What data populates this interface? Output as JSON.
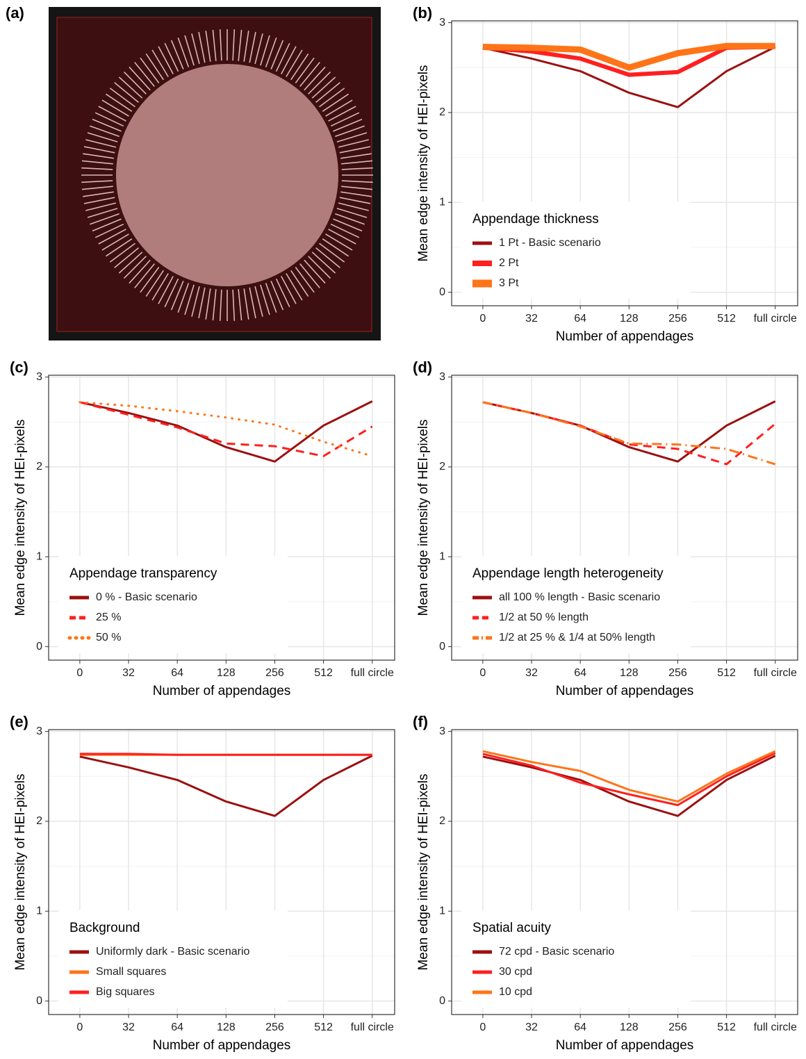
{
  "image_panel": {
    "label": "(a)"
  },
  "chart_data": [
    {
      "type": "line",
      "panel_label": "(b)",
      "xlabel": "Number of appendages",
      "ylabel": "Mean edge intensity of HEI-pixels",
      "categories": [
        "0",
        "32",
        "64",
        "128",
        "256",
        "512",
        "full circle"
      ],
      "ylim": [
        -0.15,
        3.02
      ],
      "yticks": [
        0,
        1,
        2,
        3
      ],
      "grid": true,
      "legend_title": "Appendage thickness",
      "series": [
        {
          "name": "1 Pt - Basic scenario",
          "color": "#9b1010",
          "dash": "solid",
          "line_width": 3,
          "values": [
            2.72,
            2.6,
            2.46,
            2.22,
            2.06,
            2.46,
            2.73
          ]
        },
        {
          "name": "2 Pt",
          "color": "#ff1f1f",
          "dash": "solid",
          "line_width": 6,
          "values": [
            2.72,
            2.68,
            2.6,
            2.42,
            2.45,
            2.72,
            2.73
          ]
        },
        {
          "name": "3 Pt",
          "color": "#ff7418",
          "dash": "solid",
          "line_width": 9,
          "values": [
            2.73,
            2.72,
            2.7,
            2.5,
            2.66,
            2.74,
            2.74
          ]
        }
      ]
    },
    {
      "type": "line",
      "panel_label": "(c)",
      "xlabel": "Number of appendages",
      "ylabel": "Mean edge intensity of HEI-pixels",
      "categories": [
        "0",
        "32",
        "64",
        "128",
        "256",
        "512",
        "full circle"
      ],
      "ylim": [
        -0.15,
        3.02
      ],
      "yticks": [
        0,
        1,
        2,
        3
      ],
      "grid": true,
      "legend_title": "Appendage transparency",
      "series": [
        {
          "name": "0 % - Basic scenario",
          "color": "#9b1010",
          "dash": "solid",
          "line_width": 3,
          "values": [
            2.72,
            2.6,
            2.46,
            2.22,
            2.06,
            2.46,
            2.73
          ]
        },
        {
          "name": "25 %",
          "color": "#ff1f1f",
          "dash": "dashed",
          "line_width": 3,
          "values": [
            2.72,
            2.58,
            2.44,
            2.26,
            2.23,
            2.12,
            2.45
          ]
        },
        {
          "name": "50 %",
          "color": "#ff7418",
          "dash": "dotted",
          "line_width": 3,
          "values": [
            2.72,
            2.68,
            2.62,
            2.55,
            2.47,
            2.28,
            2.12
          ]
        }
      ]
    },
    {
      "type": "line",
      "panel_label": "(d)",
      "xlabel": "Number of appendages",
      "ylabel": "Mean edge intensity of HEI-pixels",
      "categories": [
        "0",
        "32",
        "64",
        "128",
        "256",
        "512",
        "full circle"
      ],
      "ylim": [
        -0.15,
        3.02
      ],
      "yticks": [
        0,
        1,
        2,
        3
      ],
      "grid": true,
      "legend_title": "Appendage length heterogeneity",
      "series": [
        {
          "name": "all 100 % length - Basic scenario",
          "color": "#9b1010",
          "dash": "solid",
          "line_width": 3,
          "values": [
            2.72,
            2.6,
            2.46,
            2.22,
            2.06,
            2.46,
            2.73
          ]
        },
        {
          "name": "1/2 at 50 % length",
          "color": "#ff1f1f",
          "dash": "dashed",
          "line_width": 3,
          "values": [
            2.72,
            2.6,
            2.46,
            2.25,
            2.2,
            2.03,
            2.48
          ]
        },
        {
          "name": "1/2 at 25 % & 1/4 at 50% length",
          "color": "#ff7418",
          "dash": "dashdot",
          "line_width": 3,
          "values": [
            2.72,
            2.6,
            2.45,
            2.26,
            2.25,
            2.2,
            2.03
          ]
        }
      ]
    },
    {
      "type": "line",
      "panel_label": "(e)",
      "xlabel": "Number of appendages",
      "ylabel": "Mean edge intensity of HEI-pixels",
      "categories": [
        "0",
        "32",
        "64",
        "128",
        "256",
        "512",
        "full circle"
      ],
      "ylim": [
        -0.15,
        3.02
      ],
      "yticks": [
        0,
        1,
        2,
        3
      ],
      "grid": true,
      "legend_title": "Background",
      "series": [
        {
          "name": "Uniformly dark - Basic scenario",
          "color": "#9b1010",
          "dash": "solid",
          "line_width": 3,
          "values": [
            2.72,
            2.6,
            2.46,
            2.22,
            2.06,
            2.46,
            2.73
          ]
        },
        {
          "name": "Small squares",
          "color": "#ff7418",
          "dash": "solid",
          "line_width": 3,
          "values": [
            2.74,
            2.74,
            2.74,
            2.74,
            2.74,
            2.74,
            2.74
          ]
        },
        {
          "name": "Big squares",
          "color": "#ff1f1f",
          "dash": "solid",
          "line_width": 3,
          "values": [
            2.75,
            2.75,
            2.74,
            2.74,
            2.74,
            2.74,
            2.74
          ]
        }
      ]
    },
    {
      "type": "line",
      "panel_label": "(f)",
      "xlabel": "Number of appendages",
      "ylabel": "Mean edge intensity of HEI-pixels",
      "categories": [
        "0",
        "32",
        "64",
        "128",
        "256",
        "512",
        "full circle"
      ],
      "ylim": [
        -0.15,
        3.02
      ],
      "yticks": [
        0,
        1,
        2,
        3
      ],
      "grid": true,
      "legend_title": "Spatial acuity",
      "series": [
        {
          "name": "72 cpd - Basic scenario",
          "color": "#9b1010",
          "dash": "solid",
          "line_width": 3,
          "values": [
            2.72,
            2.6,
            2.46,
            2.22,
            2.06,
            2.46,
            2.73
          ]
        },
        {
          "name": "30 cpd",
          "color": "#ff1f1f",
          "dash": "solid",
          "line_width": 3,
          "values": [
            2.75,
            2.62,
            2.43,
            2.3,
            2.18,
            2.5,
            2.76
          ]
        },
        {
          "name": "10 cpd",
          "color": "#ff7418",
          "dash": "solid",
          "line_width": 3,
          "values": [
            2.78,
            2.66,
            2.56,
            2.35,
            2.22,
            2.53,
            2.78
          ]
        }
      ]
    }
  ]
}
